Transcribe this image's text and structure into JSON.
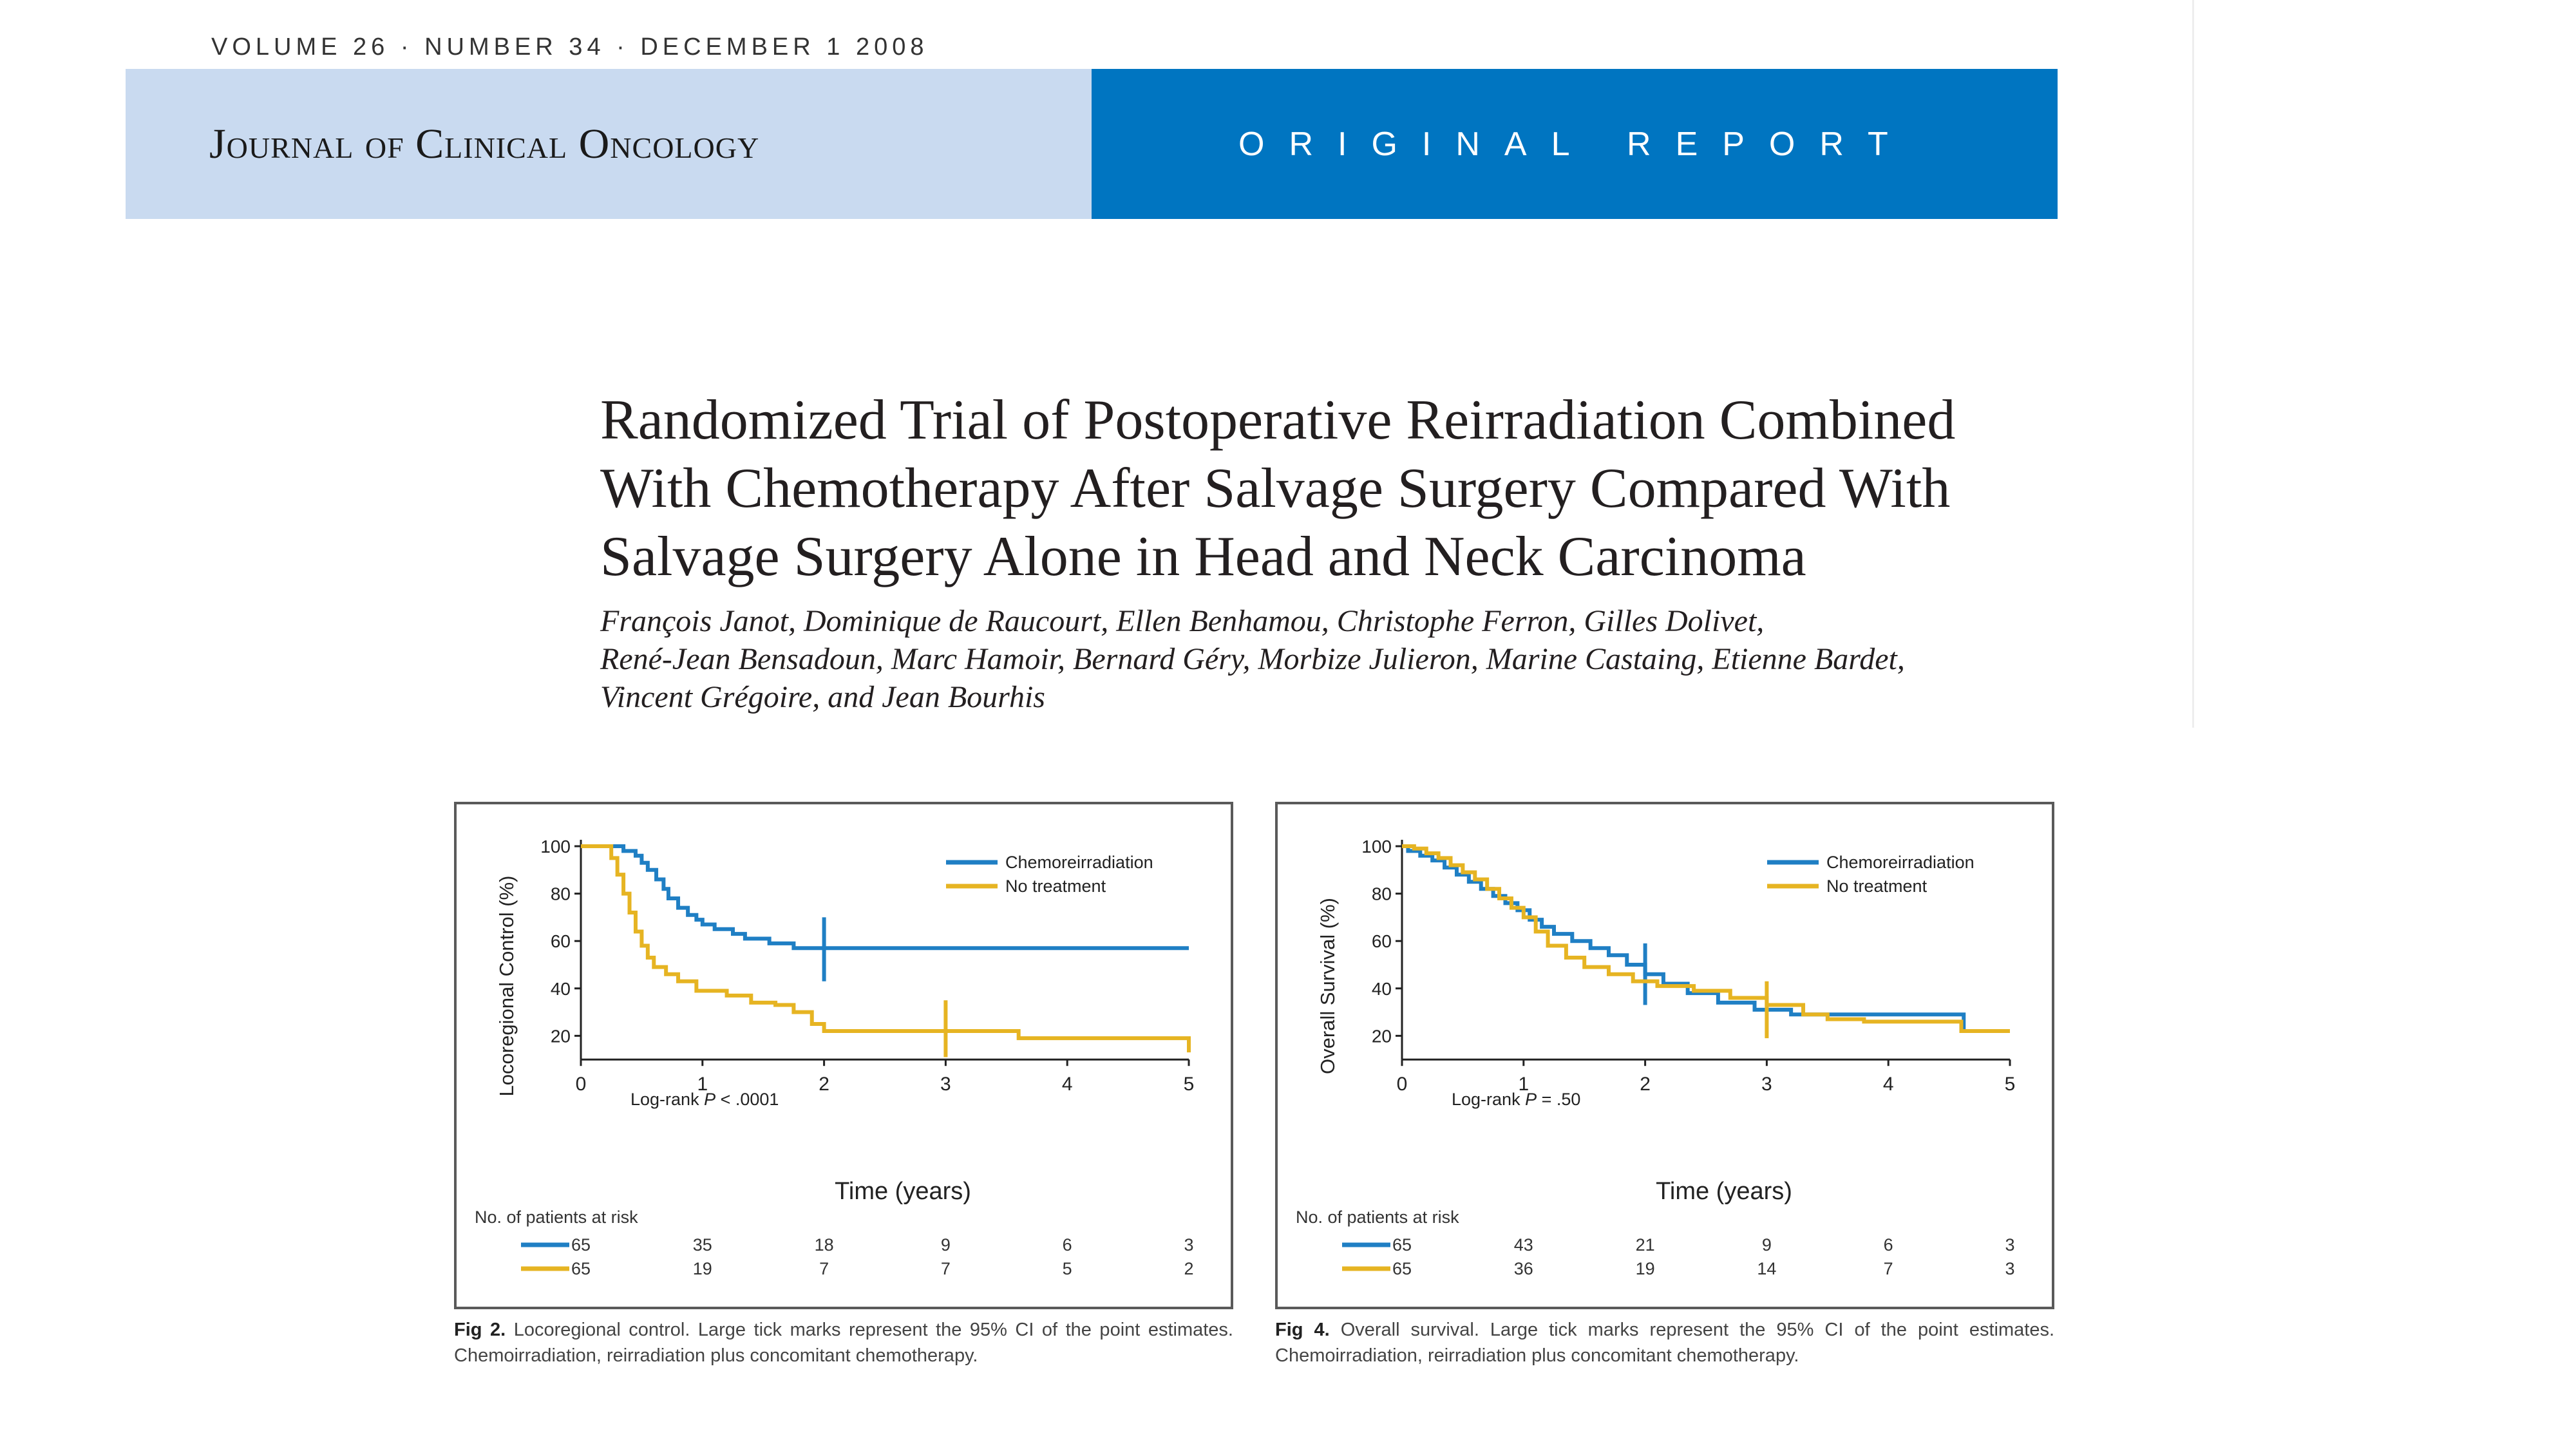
{
  "masthead": {
    "issue_line": "VOLUME 26 · NUMBER 34 · DECEMBER 1 2008",
    "journal": "Journal of Clinical Oncology",
    "report_type": "ORIGINAL REPORT",
    "colors": {
      "band_left": "#c9daf0",
      "band_right": "#0075c1"
    }
  },
  "article": {
    "title_lines": [
      "Randomized Trial of Postoperative Reirradiation Combined",
      "With Chemotherapy After Salvage Surgery Compared With",
      "Salvage Surgery Alone in Head and Neck Carcinoma"
    ],
    "author_lines": [
      "François Janot, Dominique de Raucourt, Ellen Benhamou, Christophe Ferron, Gilles Dolivet,",
      "René-Jean Bensadoun, Marc Hamoir, Bernard Géry, Morbize Julieron, Marine Castaing, Etienne Bardet,",
      "Vincent Grégoire, and Jean Bourhis"
    ]
  },
  "figures": [
    {
      "caption_label": "Fig 2.",
      "caption_text": " Locoregional control. Large tick marks represent the 95% CI of the point estimates. Chemoirradiation, reirradiation plus concomitant chemotherapy.",
      "ylabel": "Locoregional Control (%)",
      "xlabel": "Time (years)",
      "pvalue_prefix": "Log-rank ",
      "pvalue_p": "P",
      "pvalue_rest": " < .0001",
      "risk_title": "No. of patients at risk",
      "x_ticks": [
        "0",
        "1",
        "2",
        "3",
        "4",
        "5"
      ],
      "y_ticks": [
        "20",
        "40",
        "60",
        "80",
        "100"
      ],
      "risk": {
        "chemo": [
          "65",
          "35",
          "18",
          "9",
          "6",
          "3"
        ],
        "none": [
          "65",
          "19",
          "7",
          "7",
          "5",
          "2"
        ]
      }
    },
    {
      "caption_label": "Fig 4.",
      "caption_text": " Overall survival. Large tick marks represent the 95% CI of the point estimates. Chemoirradiation, reirradiation plus concomitant chemotherapy.",
      "ylabel": "Overall Survival (%)",
      "xlabel": "Time (years)",
      "pvalue_prefix": "Log-rank ",
      "pvalue_p": "P",
      "pvalue_rest": " = .50",
      "risk_title": "No. of patients at risk",
      "x_ticks": [
        "0",
        "1",
        "2",
        "3",
        "4",
        "5"
      ],
      "y_ticks": [
        "20",
        "40",
        "60",
        "80",
        "100"
      ],
      "risk": {
        "chemo": [
          "65",
          "43",
          "21",
          "9",
          "6",
          "3"
        ],
        "none": [
          "65",
          "36",
          "19",
          "14",
          "7",
          "3"
        ]
      }
    }
  ],
  "chart_data": [
    {
      "type": "line",
      "title": "",
      "xlabel": "Time (years)",
      "ylabel": "Locoregional Control (%)",
      "xlim": [
        0,
        5
      ],
      "ylim": [
        10,
        100
      ],
      "grid": false,
      "legend_position": "top-right",
      "annotation": "Log-rank P < .0001",
      "series": [
        {
          "name": "Chemoreirradiation",
          "color": "#1f7fc4",
          "x": [
            0,
            0.3,
            0.35,
            0.45,
            0.5,
            0.55,
            0.62,
            0.68,
            0.72,
            0.8,
            0.88,
            0.95,
            1.0,
            1.1,
            1.25,
            1.35,
            1.55,
            1.75,
            2.0,
            5.0
          ],
          "y": [
            100,
            100,
            98,
            96,
            93,
            90,
            86,
            82,
            78,
            74,
            71,
            69,
            67,
            65,
            63,
            61,
            59,
            57,
            57,
            57
          ],
          "ci": [
            {
              "x": 2.0,
              "low": 43,
              "high": 70
            }
          ]
        },
        {
          "name": "No treatment",
          "color": "#e6b422",
          "x": [
            0,
            0.2,
            0.25,
            0.3,
            0.35,
            0.4,
            0.45,
            0.5,
            0.55,
            0.6,
            0.7,
            0.8,
            0.95,
            1.2,
            1.4,
            1.6,
            1.75,
            1.9,
            2.0,
            3.0,
            3.6,
            4.95,
            5.0
          ],
          "y": [
            100,
            100,
            95,
            88,
            80,
            72,
            64,
            58,
            53,
            49,
            46,
            43,
            39,
            37,
            34,
            33,
            30,
            25,
            22,
            22,
            19,
            19,
            13
          ],
          "ci": [
            {
              "x": 3.0,
              "low": 11,
              "high": 35
            }
          ]
        }
      ]
    },
    {
      "type": "line",
      "title": "",
      "xlabel": "Time (years)",
      "ylabel": "Overall Survival (%)",
      "xlim": [
        0,
        5
      ],
      "ylim": [
        10,
        100
      ],
      "grid": false,
      "legend_position": "top-right",
      "annotation": "Log-rank P = .50",
      "series": [
        {
          "name": "Chemoreirradiation",
          "color": "#1f7fc4",
          "x": [
            0,
            0.05,
            0.15,
            0.25,
            0.35,
            0.45,
            0.55,
            0.65,
            0.75,
            0.85,
            0.95,
            1.05,
            1.15,
            1.25,
            1.4,
            1.55,
            1.7,
            1.85,
            2.0,
            2.15,
            2.35,
            2.6,
            2.9,
            3.2,
            3.6,
            4.2,
            4.6,
            4.62,
            5.0
          ],
          "y": [
            100,
            98,
            96,
            94,
            91,
            88,
            85,
            82,
            79,
            76,
            73,
            69,
            66,
            63,
            60,
            57,
            54,
            50,
            46,
            42,
            38,
            34,
            31,
            29,
            29,
            29,
            29,
            22,
            22
          ],
          "ci": [
            {
              "x": 2.0,
              "low": 33,
              "high": 59
            }
          ]
        },
        {
          "name": "No treatment",
          "color": "#e6b422",
          "x": [
            0,
            0.1,
            0.2,
            0.3,
            0.4,
            0.5,
            0.6,
            0.7,
            0.8,
            0.9,
            1.0,
            1.1,
            1.2,
            1.35,
            1.5,
            1.7,
            1.9,
            2.1,
            2.4,
            2.7,
            3.0,
            3.3,
            3.5,
            3.8,
            4.3,
            4.6,
            5.0
          ],
          "y": [
            100,
            99,
            97,
            95,
            92,
            89,
            86,
            82,
            78,
            74,
            70,
            64,
            58,
            53,
            49,
            46,
            43,
            41,
            39,
            36,
            33,
            29,
            27,
            26,
            26,
            22,
            22
          ],
          "ci": [
            {
              "x": 3.0,
              "low": 19,
              "high": 43
            }
          ]
        }
      ]
    }
  ]
}
